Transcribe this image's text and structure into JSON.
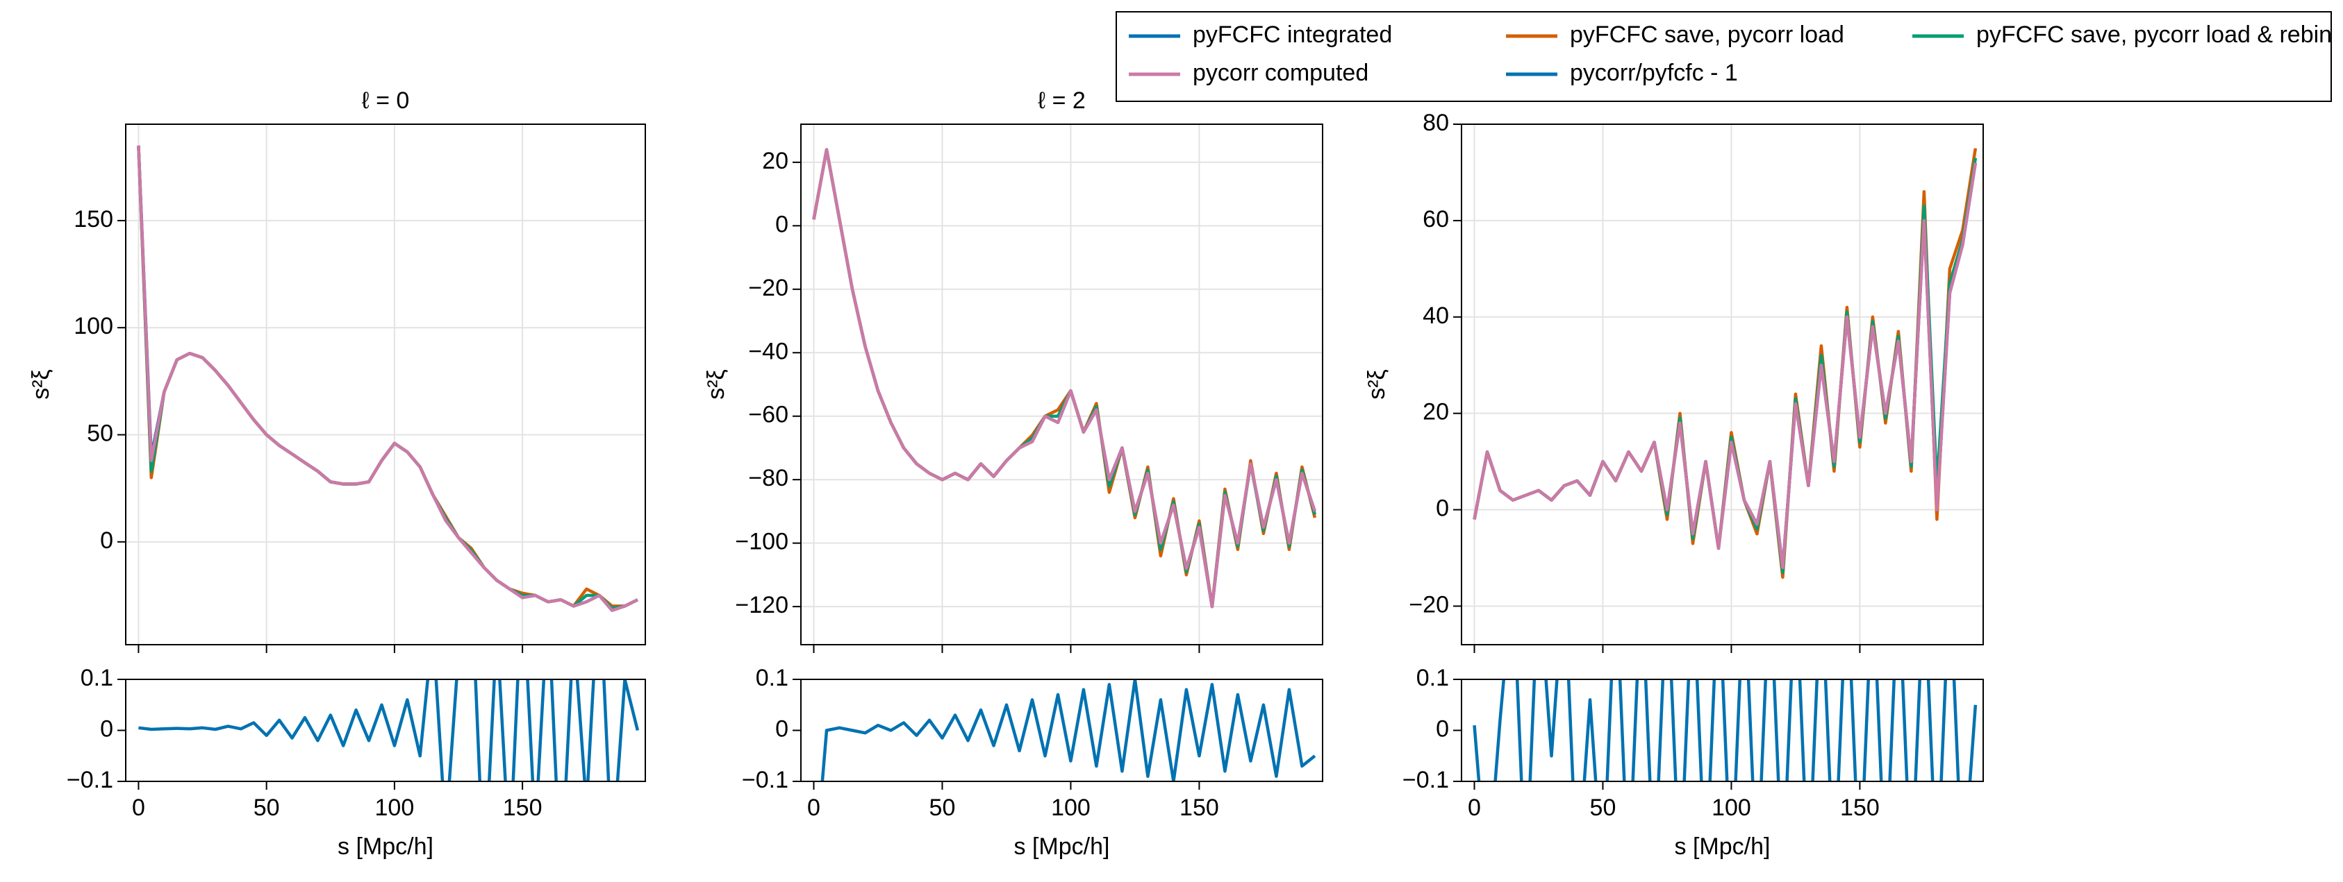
{
  "chart_data": [
    {
      "type": "line",
      "title": "ℓ = 0",
      "ylabel": "s²ξ",
      "grid": true,
      "x": [
        0,
        5,
        10,
        15,
        20,
        25,
        30,
        35,
        40,
        45,
        50,
        55,
        60,
        65,
        70,
        75,
        80,
        85,
        90,
        95,
        100,
        105,
        110,
        115,
        120,
        125,
        130,
        135,
        140,
        145,
        150,
        155,
        160,
        165,
        170,
        175,
        180,
        185,
        190,
        195
      ],
      "xlim": [
        -5,
        198
      ],
      "xticks": [
        0,
        50,
        100,
        150
      ],
      "ylim": [
        -48,
        195
      ],
      "yticks": [
        0,
        50,
        100,
        150
      ],
      "series": [
        {
          "name": "pyFCFC integrated",
          "color": "#0072b2",
          "values": [
            185,
            40,
            70,
            85,
            88,
            86,
            80,
            73,
            65,
            57,
            50,
            45,
            41,
            37,
            33,
            28,
            27,
            27,
            28,
            38,
            46,
            42,
            35,
            22,
            10,
            2,
            -5,
            -12,
            -18,
            -22,
            -26,
            -25,
            -28,
            -27,
            -30,
            -28,
            -25,
            -32,
            -30,
            -27
          ]
        },
        {
          "name": "pyFCFC save, pycorr load",
          "color": "#d55e00",
          "values": [
            185,
            30,
            70,
            85,
            88,
            86,
            80,
            73,
            65,
            57,
            50,
            45,
            41,
            37,
            33,
            28,
            27,
            27,
            28,
            38,
            46,
            42,
            35,
            22,
            12,
            2,
            -3,
            -12,
            -18,
            -22,
            -24,
            -25,
            -28,
            -27,
            -30,
            -22,
            -25,
            -30,
            -30,
            -27
          ]
        },
        {
          "name": "pyFCFC save, pycorr load & rebin",
          "color": "#009e73",
          "values": [
            185,
            33,
            70,
            85,
            88,
            86,
            80,
            73,
            65,
            57,
            50,
            45,
            41,
            37,
            33,
            28,
            27,
            27,
            28,
            38,
            46,
            42,
            35,
            22,
            11,
            2,
            -4,
            -12,
            -18,
            -22,
            -25,
            -25,
            -28,
            -27,
            -30,
            -25,
            -25,
            -31,
            -30,
            -27
          ]
        },
        {
          "name": "pycorr computed",
          "color": "#cc79a7",
          "values": [
            185,
            38,
            70,
            85,
            88,
            86,
            80,
            73,
            65,
            57,
            50,
            45,
            41,
            37,
            33,
            28,
            27,
            27,
            28,
            38,
            46,
            42,
            35,
            22,
            10,
            2,
            -5,
            -12,
            -18,
            -22,
            -26,
            -25,
            -28,
            -27,
            -30,
            -28,
            -25,
            -32,
            -30,
            -27
          ]
        }
      ]
    },
    {
      "type": "line",
      "title": "ℓ = 2",
      "ylabel": "s²ξ",
      "grid": true,
      "x": [
        0,
        5,
        10,
        15,
        20,
        25,
        30,
        35,
        40,
        45,
        50,
        55,
        60,
        65,
        70,
        75,
        80,
        85,
        90,
        95,
        100,
        105,
        110,
        115,
        120,
        125,
        130,
        135,
        140,
        145,
        150,
        155,
        160,
        165,
        170,
        175,
        180,
        185,
        190,
        195
      ],
      "xlim": [
        -5,
        198
      ],
      "xticks": [
        0,
        50,
        100,
        150
      ],
      "ylim": [
        -132,
        32
      ],
      "yticks": [
        {
          "value": -120,
          "label": "−120"
        },
        {
          "value": -100,
          "label": "−100"
        },
        {
          "value": -80,
          "label": "−80"
        },
        {
          "value": -60,
          "label": "−60"
        },
        {
          "value": -40,
          "label": "−40"
        },
        {
          "value": -20,
          "label": "−20"
        },
        0,
        20
      ],
      "series": [
        {
          "color": "#0072b2",
          "values": [
            2,
            24,
            2,
            -20,
            -38,
            -52,
            -62,
            -70,
            -75,
            -78,
            -80,
            -78,
            -80,
            -75,
            -79,
            -74,
            -70,
            -68,
            -60,
            -62,
            -52,
            -65,
            -58,
            -80,
            -70,
            -90,
            -78,
            -100,
            -88,
            -108,
            -95,
            -120,
            -85,
            -100,
            -75,
            -95,
            -80,
            -100,
            -78,
            -90
          ]
        },
        {
          "color": "#d55e00",
          "values": [
            2,
            24,
            2,
            -20,
            -38,
            -52,
            -62,
            -70,
            -75,
            -78,
            -80,
            -78,
            -80,
            -75,
            -79,
            -74,
            -70,
            -66,
            -60,
            -58,
            -52,
            -65,
            -56,
            -84,
            -70,
            -92,
            -76,
            -104,
            -86,
            -110,
            -93,
            -120,
            -83,
            -102,
            -74,
            -97,
            -78,
            -102,
            -76,
            -92
          ]
        },
        {
          "color": "#009e73",
          "values": [
            2,
            24,
            2,
            -20,
            -38,
            -52,
            -62,
            -70,
            -75,
            -78,
            -80,
            -78,
            -80,
            -75,
            -79,
            -74,
            -70,
            -67,
            -60,
            -60,
            -52,
            -65,
            -57,
            -82,
            -70,
            -91,
            -77,
            -102,
            -87,
            -109,
            -94,
            -120,
            -84,
            -101,
            -75,
            -96,
            -79,
            -101,
            -77,
            -91
          ]
        },
        {
          "color": "#cc79a7",
          "values": [
            2,
            24,
            2,
            -20,
            -38,
            -52,
            -62,
            -70,
            -75,
            -78,
            -80,
            -78,
            -80,
            -75,
            -79,
            -74,
            -70,
            -68,
            -60,
            -62,
            -52,
            -65,
            -58,
            -80,
            -70,
            -90,
            -78,
            -100,
            -88,
            -108,
            -95,
            -120,
            -85,
            -100,
            -75,
            -95,
            -80,
            -100,
            -78,
            -90
          ]
        }
      ]
    },
    {
      "type": "line",
      "ylabel": "s²ξ",
      "grid": true,
      "x": [
        0,
        5,
        10,
        15,
        20,
        25,
        30,
        35,
        40,
        45,
        50,
        55,
        60,
        65,
        70,
        75,
        80,
        85,
        90,
        95,
        100,
        105,
        110,
        115,
        120,
        125,
        130,
        135,
        140,
        145,
        150,
        155,
        160,
        165,
        170,
        175,
        180,
        185,
        190,
        195
      ],
      "xlim": [
        -5,
        198
      ],
      "xticks": [
        0,
        50,
        100,
        150
      ],
      "ylim": [
        -28,
        80
      ],
      "yticks": [
        {
          "value": -20,
          "label": "−20"
        },
        0,
        20,
        40,
        60,
        80
      ],
      "series": [
        {
          "color": "#0072b2",
          "values": [
            -2,
            12,
            4,
            2,
            3,
            4,
            2,
            5,
            6,
            3,
            10,
            6,
            12,
            8,
            14,
            0,
            18,
            -5,
            10,
            -8,
            14,
            2,
            -3,
            10,
            -12,
            22,
            5,
            30,
            10,
            40,
            15,
            38,
            20,
            35,
            10,
            60,
            0,
            45,
            55,
            72
          ]
        },
        {
          "color": "#d55e00",
          "values": [
            -2,
            12,
            4,
            2,
            3,
            4,
            2,
            5,
            6,
            3,
            10,
            6,
            12,
            8,
            14,
            -2,
            20,
            -7,
            10,
            -8,
            16,
            2,
            -5,
            10,
            -14,
            24,
            5,
            34,
            8,
            42,
            13,
            40,
            18,
            37,
            8,
            66,
            -2,
            50,
            58,
            75
          ]
        },
        {
          "color": "#009e73",
          "values": [
            -2,
            12,
            4,
            2,
            3,
            4,
            2,
            5,
            6,
            3,
            10,
            6,
            12,
            8,
            14,
            -1,
            19,
            -6,
            10,
            -8,
            15,
            2,
            -4,
            10,
            -13,
            23,
            5,
            32,
            9,
            41,
            14,
            39,
            19,
            36,
            9,
            63,
            5,
            47,
            56,
            73
          ]
        },
        {
          "color": "#cc79a7",
          "values": [
            -2,
            12,
            4,
            2,
            3,
            4,
            2,
            5,
            6,
            3,
            10,
            6,
            12,
            8,
            14,
            0,
            18,
            -5,
            10,
            -8,
            14,
            2,
            -3,
            10,
            -12,
            22,
            5,
            30,
            10,
            40,
            15,
            38,
            20,
            35,
            10,
            60,
            0,
            45,
            55,
            72
          ]
        }
      ]
    },
    {
      "type": "line",
      "xlabel": "s [Mpc/h]",
      "x": [
        0,
        5,
        10,
        15,
        20,
        25,
        30,
        35,
        40,
        45,
        50,
        55,
        60,
        65,
        70,
        75,
        80,
        85,
        90,
        95,
        100,
        105,
        110,
        115,
        120,
        125,
        130,
        135,
        140,
        145,
        150,
        155,
        160,
        165,
        170,
        175,
        180,
        185,
        190,
        195
      ],
      "xlim": [
        -5,
        198
      ],
      "xticks": [
        0,
        50,
        100,
        150
      ],
      "ylim": [
        -0.1,
        0.1
      ],
      "yticks": [
        {
          "value": -0.1,
          "label": "−0.1"
        },
        0,
        0.1
      ],
      "series": [
        {
          "name": "pycorr/pyfcfc - 1",
          "color": "#0072b2",
          "values": [
            0.005,
            0.002,
            0.003,
            0.004,
            0.003,
            0.005,
            0.002,
            0.008,
            0.003,
            0.015,
            -0.01,
            0.02,
            -0.015,
            0.025,
            -0.02,
            0.03,
            -0.03,
            0.04,
            -0.02,
            0.05,
            -0.03,
            0.06,
            -0.05,
            0.2,
            -0.2,
            0.15,
            0.3,
            -0.3,
            0.2,
            -0.25,
            0.3,
            -0.2,
            0.25,
            -0.3,
            0.2,
            -0.15,
            0.3,
            -0.25,
            0.1,
            0.0
          ]
        }
      ]
    },
    {
      "type": "line",
      "xlabel": "s [Mpc/h]",
      "x": [
        0,
        5,
        10,
        15,
        20,
        25,
        30,
        35,
        40,
        45,
        50,
        55,
        60,
        65,
        70,
        75,
        80,
        85,
        90,
        95,
        100,
        105,
        110,
        115,
        120,
        125,
        130,
        135,
        140,
        145,
        150,
        155,
        160,
        165,
        170,
        175,
        180,
        185,
        190,
        195
      ],
      "xlim": [
        -5,
        198
      ],
      "xticks": [
        0,
        50,
        100,
        150
      ],
      "ylim": [
        -0.1,
        0.1
      ],
      "yticks": [
        {
          "value": -0.1,
          "label": "−0.1"
        },
        0,
        0.1
      ],
      "series": [
        {
          "color": "#0072b2",
          "values": [
            -0.3,
            0.0,
            0.005,
            0.0,
            -0.005,
            0.01,
            0.0,
            0.015,
            -0.01,
            0.02,
            -0.015,
            0.03,
            -0.02,
            0.04,
            -0.03,
            0.05,
            -0.04,
            0.06,
            -0.05,
            0.07,
            -0.06,
            0.08,
            -0.07,
            0.09,
            -0.08,
            0.1,
            -0.09,
            0.06,
            -0.1,
            0.08,
            -0.05,
            0.09,
            -0.08,
            0.07,
            -0.06,
            0.05,
            -0.09,
            0.08,
            -0.07,
            -0.05
          ]
        }
      ]
    },
    {
      "type": "line",
      "xlabel": "s [Mpc/h]",
      "x": [
        0,
        5,
        10,
        15,
        20,
        25,
        30,
        35,
        40,
        45,
        50,
        55,
        60,
        65,
        70,
        75,
        80,
        85,
        90,
        95,
        100,
        105,
        110,
        115,
        120,
        125,
        130,
        135,
        140,
        145,
        150,
        155,
        160,
        165,
        170,
        175,
        180,
        185,
        190,
        195
      ],
      "xlim": [
        -5,
        198
      ],
      "xticks": [
        0,
        50,
        100,
        150
      ],
      "ylim": [
        -0.1,
        0.1
      ],
      "yticks": [
        {
          "value": -0.1,
          "label": "−0.1"
        },
        0,
        0.1
      ],
      "series": [
        {
          "color": "#0072b2",
          "values": [
            0.01,
            -0.3,
            0.02,
            0.3,
            -0.3,
            0.3,
            -0.05,
            0.3,
            -0.3,
            0.06,
            -0.3,
            0.3,
            -0.3,
            0.3,
            -0.3,
            0.3,
            -0.3,
            0.3,
            -0.3,
            0.3,
            -0.3,
            0.3,
            -0.3,
            0.3,
            -0.3,
            0.3,
            -0.3,
            0.3,
            -0.3,
            0.3,
            -0.3,
            0.3,
            -0.3,
            0.3,
            -0.3,
            0.3,
            -0.3,
            0.3,
            -0.3,
            0.05
          ]
        }
      ]
    }
  ]
}
